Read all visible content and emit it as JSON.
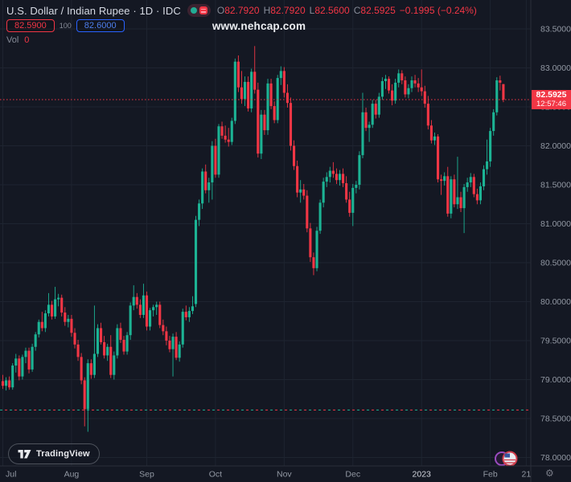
{
  "header": {
    "symbol_title": "U.S. Dollar / Indian Rupee · 1D · IDC",
    "ohlc": {
      "o_label": "O",
      "o": "82.7920",
      "h_label": "H",
      "h": "82.7920",
      "l_label": "L",
      "l": "82.5600",
      "c_label": "C",
      "c": "82.5925",
      "change": "−0.1995 (−0.24%)"
    },
    "bid": "82.5900",
    "spread": "100",
    "ask": "82.6000",
    "vol_label": "Vol",
    "vol_value": "0",
    "watermark": "www.nehcap.com"
  },
  "footer": {
    "logo_text": "TradingView",
    "gear_icon": "⚙"
  },
  "colors": {
    "background": "#141823",
    "grid": "#1e2430",
    "axis_border": "#2a2e39",
    "axis_text": "#9298a3",
    "axis_text_bright": "#d1d4dc",
    "up": "#1cb394",
    "down": "#f23645",
    "label_bg": "#f23645"
  },
  "chart_data": {
    "type": "candlestick",
    "title": "U.S. Dollar / Indian Rupee",
    "timeframe": "1D",
    "exchange": "IDC",
    "ylim": [
      78.0,
      83.5
    ],
    "y_ticks": [
      83.5,
      83.0,
      82.5,
      82.0,
      81.5,
      81.0,
      80.5,
      80.0,
      79.5,
      79.0,
      78.5,
      78.0
    ],
    "grid": true,
    "last_price": 82.5925,
    "last_price_label": "82.5925",
    "countdown": "12:57:46",
    "baseline_price": 78.61,
    "x_labels": [
      {
        "label": "Jul",
        "index": 0,
        "bright": false
      },
      {
        "label": "Aug",
        "index": 21,
        "bright": false
      },
      {
        "label": "Sep",
        "index": 44,
        "bright": false
      },
      {
        "label": "Oct",
        "index": 65,
        "bright": false
      },
      {
        "label": "Nov",
        "index": 86,
        "bright": false
      },
      {
        "label": "Dec",
        "index": 107,
        "bright": false
      },
      {
        "label": "2023",
        "index": 128,
        "bright": true
      },
      {
        "label": "Feb",
        "index": 149,
        "bright": false
      },
      {
        "label": "21",
        "index": 160,
        "bright": false
      }
    ],
    "candles": [
      [
        78.98,
        79.06,
        78.88,
        78.92
      ],
      [
        78.92,
        79.03,
        78.86,
        78.99
      ],
      [
        78.99,
        79.04,
        78.87,
        78.9
      ],
      [
        78.9,
        79.21,
        78.87,
        79.18
      ],
      [
        79.18,
        79.33,
        79.09,
        79.27
      ],
      [
        79.27,
        79.31,
        78.99,
        79.04
      ],
      [
        79.04,
        79.32,
        79.0,
        79.29
      ],
      [
        79.29,
        79.41,
        79.21,
        79.37
      ],
      [
        79.37,
        79.41,
        79.08,
        79.13
      ],
      [
        79.13,
        79.46,
        79.1,
        79.42
      ],
      [
        79.42,
        79.61,
        79.37,
        79.58
      ],
      [
        79.58,
        79.77,
        79.54,
        79.74
      ],
      [
        79.74,
        79.87,
        79.62,
        79.66
      ],
      [
        79.66,
        79.89,
        79.61,
        79.85
      ],
      [
        79.85,
        80.11,
        79.81,
        79.96
      ],
      [
        79.96,
        80.01,
        79.77,
        79.81
      ],
      [
        79.81,
        80.19,
        79.78,
        80.03
      ],
      [
        80.03,
        80.1,
        79.94,
        80.05
      ],
      [
        80.05,
        80.09,
        79.81,
        79.86
      ],
      [
        79.86,
        79.93,
        79.69,
        79.74
      ],
      [
        79.74,
        79.83,
        79.67,
        79.78
      ],
      [
        79.78,
        79.83,
        79.55,
        79.6
      ],
      [
        79.6,
        79.66,
        79.4,
        79.45
      ],
      [
        79.45,
        79.51,
        79.24,
        79.29
      ],
      [
        79.29,
        79.34,
        78.94,
        78.99
      ],
      [
        78.99,
        79.03,
        78.4,
        78.62
      ],
      [
        78.62,
        79.26,
        78.33,
        79.21
      ],
      [
        79.21,
        79.26,
        79.01,
        79.06
      ],
      [
        79.06,
        79.95,
        79.02,
        79.33
      ],
      [
        79.33,
        79.71,
        79.29,
        79.66
      ],
      [
        79.66,
        79.73,
        79.45,
        79.48
      ],
      [
        79.48,
        79.56,
        79.27,
        79.31
      ],
      [
        79.31,
        79.46,
        79.24,
        79.42
      ],
      [
        79.42,
        79.57,
        79.02,
        79.06
      ],
      [
        79.06,
        79.36,
        79.0,
        79.31
      ],
      [
        79.31,
        79.71,
        79.27,
        79.66
      ],
      [
        79.66,
        79.73,
        79.47,
        79.51
      ],
      [
        79.51,
        79.56,
        79.32,
        79.36
      ],
      [
        79.36,
        79.61,
        79.32,
        79.57
      ],
      [
        79.57,
        79.99,
        79.51,
        79.95
      ],
      [
        79.95,
        80.21,
        79.89,
        80.06
      ],
      [
        80.06,
        80.11,
        79.91,
        79.96
      ],
      [
        79.96,
        80.03,
        79.79,
        79.83
      ],
      [
        79.83,
        80.23,
        79.79,
        80.08
      ],
      [
        80.08,
        80.13,
        79.63,
        79.68
      ],
      [
        79.68,
        79.92,
        79.63,
        79.89
      ],
      [
        79.89,
        79.96,
        79.81,
        79.93
      ],
      [
        79.93,
        80.0,
        79.83,
        79.96
      ],
      [
        79.96,
        80.0,
        79.66,
        79.7
      ],
      [
        79.7,
        79.77,
        79.57,
        79.62
      ],
      [
        79.62,
        79.68,
        79.44,
        79.5
      ],
      [
        79.5,
        79.56,
        79.35,
        79.39
      ],
      [
        79.39,
        79.59,
        79.04,
        79.55
      ],
      [
        79.55,
        79.61,
        79.25,
        79.28
      ],
      [
        79.28,
        79.49,
        79.23,
        79.45
      ],
      [
        79.45,
        79.91,
        79.41,
        79.87
      ],
      [
        79.87,
        79.95,
        79.76,
        79.8
      ],
      [
        79.8,
        79.93,
        79.74,
        79.88
      ],
      [
        79.88,
        80.07,
        79.84,
        79.94
      ],
      [
        79.97,
        81.1,
        79.93,
        81.05
      ],
      [
        81.05,
        81.31,
        80.97,
        81.26
      ],
      [
        81.26,
        81.71,
        81.19,
        81.67
      ],
      [
        81.67,
        81.76,
        81.39,
        81.43
      ],
      [
        81.43,
        81.59,
        81.27,
        81.53
      ],
      [
        81.53,
        82.06,
        81.31,
        82.0
      ],
      [
        82.0,
        82.09,
        81.59,
        81.63
      ],
      [
        81.63,
        82.28,
        81.59,
        82.25
      ],
      [
        82.25,
        82.31,
        82.09,
        82.13
      ],
      [
        82.13,
        82.26,
        82.04,
        82.08
      ],
      [
        82.08,
        82.23,
        81.99,
        82.05
      ],
      [
        82.05,
        82.36,
        82.01,
        82.32
      ],
      [
        82.32,
        83.12,
        82.28,
        83.08
      ],
      [
        83.08,
        83.16,
        82.69,
        82.75
      ],
      [
        82.75,
        82.96,
        82.54,
        82.6
      ],
      [
        82.6,
        82.89,
        82.51,
        82.82
      ],
      [
        82.82,
        82.89,
        82.44,
        82.48
      ],
      [
        82.48,
        82.99,
        82.43,
        82.95
      ],
      [
        82.95,
        83.28,
        82.67,
        82.72
      ],
      [
        82.72,
        82.81,
        81.85,
        81.9
      ],
      [
        81.9,
        82.46,
        81.83,
        82.4
      ],
      [
        82.4,
        82.46,
        82.14,
        82.2
      ],
      [
        82.2,
        82.86,
        82.14,
        82.8
      ],
      [
        82.8,
        82.86,
        82.47,
        82.51
      ],
      [
        82.51,
        82.57,
        82.29,
        82.33
      ],
      [
        82.33,
        82.91,
        82.29,
        82.87
      ],
      [
        82.87,
        83.02,
        82.78,
        82.96
      ],
      [
        82.96,
        83.01,
        82.62,
        82.68
      ],
      [
        82.68,
        82.79,
        82.49,
        82.55
      ],
      [
        82.55,
        82.62,
        81.94,
        82.0
      ],
      [
        82.0,
        82.07,
        81.69,
        81.74
      ],
      [
        81.74,
        81.81,
        81.34,
        81.4
      ],
      [
        81.4,
        81.56,
        81.27,
        81.44
      ],
      [
        81.44,
        81.51,
        81.31,
        81.36
      ],
      [
        81.36,
        81.43,
        80.89,
        80.94
      ],
      [
        80.94,
        81.01,
        80.51,
        80.57
      ],
      [
        80.57,
        80.63,
        80.34,
        80.43
      ],
      [
        80.43,
        80.96,
        80.39,
        80.91
      ],
      [
        80.91,
        81.31,
        80.87,
        81.27
      ],
      [
        81.27,
        81.59,
        81.21,
        81.54
      ],
      [
        81.54,
        81.66,
        81.47,
        81.6
      ],
      [
        81.6,
        81.73,
        81.53,
        81.68
      ],
      [
        81.68,
        81.79,
        81.59,
        81.64
      ],
      [
        81.64,
        81.71,
        81.51,
        81.56
      ],
      [
        81.56,
        81.69,
        81.49,
        81.64
      ],
      [
        81.64,
        81.71,
        81.47,
        81.52
      ],
      [
        81.52,
        81.61,
        81.27,
        81.31
      ],
      [
        81.31,
        81.41,
        81.09,
        81.14
      ],
      [
        81.14,
        81.51,
        80.97,
        81.46
      ],
      [
        81.46,
        81.55,
        81.39,
        81.5
      ],
      [
        81.5,
        81.93,
        81.44,
        81.88
      ],
      [
        81.88,
        82.68,
        81.84,
        82.43
      ],
      [
        82.43,
        82.49,
        82.19,
        82.23
      ],
      [
        82.23,
        82.31,
        82.05,
        82.27
      ],
      [
        82.27,
        82.59,
        82.23,
        82.54
      ],
      [
        82.54,
        82.59,
        82.35,
        82.4
      ],
      [
        82.4,
        82.68,
        82.36,
        82.63
      ],
      [
        82.63,
        82.88,
        82.59,
        82.83
      ],
      [
        82.83,
        82.91,
        82.73,
        82.86
      ],
      [
        82.86,
        82.89,
        82.67,
        82.71
      ],
      [
        82.71,
        82.79,
        82.52,
        82.58
      ],
      [
        82.58,
        82.86,
        82.54,
        82.81
      ],
      [
        82.81,
        82.98,
        82.75,
        82.93
      ],
      [
        82.93,
        82.97,
        82.79,
        82.84
      ],
      [
        82.84,
        82.89,
        82.62,
        82.66
      ],
      [
        82.66,
        82.79,
        82.61,
        82.74
      ],
      [
        82.74,
        82.89,
        82.69,
        82.84
      ],
      [
        82.84,
        82.91,
        82.75,
        82.8
      ],
      [
        82.8,
        82.87,
        82.69,
        82.75
      ],
      [
        82.75,
        82.98,
        82.64,
        82.7
      ],
      [
        82.7,
        82.77,
        82.49,
        82.54
      ],
      [
        82.54,
        82.64,
        82.21,
        82.26
      ],
      [
        82.26,
        82.33,
        82.03,
        82.07
      ],
      [
        82.07,
        82.17,
        82.01,
        82.12
      ],
      [
        82.12,
        82.15,
        81.53,
        81.57
      ],
      [
        81.57,
        81.63,
        81.37,
        81.55
      ],
      [
        81.55,
        81.66,
        81.49,
        81.61
      ],
      [
        81.61,
        81.73,
        81.09,
        81.13
      ],
      [
        81.13,
        81.61,
        81.07,
        81.57
      ],
      [
        81.57,
        81.63,
        81.21,
        81.25
      ],
      [
        81.25,
        81.86,
        81.19,
        81.34
      ],
      [
        81.34,
        81.41,
        81.15,
        81.2
      ],
      [
        81.2,
        81.51,
        80.88,
        81.47
      ],
      [
        81.47,
        81.59,
        81.41,
        81.53
      ],
      [
        81.53,
        81.65,
        81.47,
        81.6
      ],
      [
        81.6,
        81.64,
        81.34,
        81.38
      ],
      [
        81.38,
        81.45,
        81.25,
        81.3
      ],
      [
        81.3,
        81.53,
        81.25,
        81.48
      ],
      [
        81.48,
        81.75,
        81.43,
        81.7
      ],
      [
        81.7,
        82.08,
        81.63,
        81.8
      ],
      [
        81.8,
        82.23,
        81.73,
        82.19
      ],
      [
        82.19,
        82.47,
        82.13,
        82.43
      ],
      [
        82.43,
        82.88,
        82.39,
        82.84
      ],
      [
        82.84,
        82.9,
        82.71,
        82.81
      ],
      [
        82.792,
        82.792,
        82.56,
        82.5925
      ]
    ]
  }
}
